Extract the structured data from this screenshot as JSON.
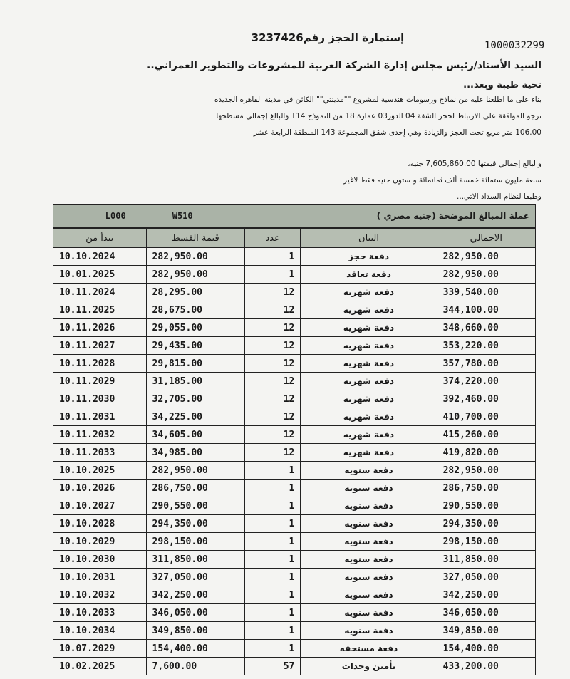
{
  "form_title": "إستمارة الحجز رقم3237426",
  "reference_number": "1000032299",
  "addressee": "السيد الأستاذ/رئيس مجلس إدارة الشركة العربية للمشروعات والتطوير العمراني..",
  "greeting": "تحية طيبة وبعد...",
  "body_lines": [
    "بناء على ما اطلعنا عليه من نماذج ورسومات هندسية لمشروع \"\"مدينتي\"\" الكائن في مدينة القاهرة الجديدة",
    "نرجو الموافقة على الارتباط لحجز الشقة 04 الدور03 عمارة  18  من النموذج T14  والبالغ إجمالي مسطحها",
    "106.00  متر مربع تحت العجز والزيادة وهي إحدى شقق المجموعة  143  المنطقة الرابعة عشر",
    "والبالغ إجمالي قيمتها   7,605,860.00  جنيه،",
    "سبعة مليون ستمائة خمسة ألف ثمانمائة و ستون   جنيه فقط لاغير",
    "وطبقا لنظام السداد الاتي..."
  ],
  "table": {
    "currency_caption": "عملة المبالغ الموضحة (جنيه مصري )",
    "code_1": "L000",
    "code_2": "W510",
    "headers": [
      "الاجمالي",
      "البيان",
      "عدد",
      "قيمة القسط",
      "يبدأ من"
    ],
    "rows": [
      [
        "282,950.00",
        "دفعة حجز",
        "1",
        "282,950.00",
        "10.10.2024"
      ],
      [
        "282,950.00",
        "دفعة تعاقد",
        "1",
        "282,950.00",
        "10.01.2025"
      ],
      [
        "339,540.00",
        "دفعة شهريه",
        "12",
        "28,295.00",
        "10.11.2024"
      ],
      [
        "344,100.00",
        "دفعة شهريه",
        "12",
        "28,675.00",
        "10.11.2025"
      ],
      [
        "348,660.00",
        "دفعة شهريه",
        "12",
        "29,055.00",
        "10.11.2026"
      ],
      [
        "353,220.00",
        "دفعة شهريه",
        "12",
        "29,435.00",
        "10.11.2027"
      ],
      [
        "357,780.00",
        "دفعة شهريه",
        "12",
        "29,815.00",
        "10.11.2028"
      ],
      [
        "374,220.00",
        "دفعة شهريه",
        "12",
        "31,185.00",
        "10.11.2029"
      ],
      [
        "392,460.00",
        "دفعة شهريه",
        "12",
        "32,705.00",
        "10.11.2030"
      ],
      [
        "410,700.00",
        "دفعة شهريه",
        "12",
        "34,225.00",
        "10.11.2031"
      ],
      [
        "415,260.00",
        "دفعة شهريه",
        "12",
        "34,605.00",
        "10.11.2032"
      ],
      [
        "419,820.00",
        "دفعة شهريه",
        "12",
        "34,985.00",
        "10.11.2033"
      ],
      [
        "282,950.00",
        "دفعة سنويه",
        "1",
        "282,950.00",
        "10.10.2025"
      ],
      [
        "286,750.00",
        "دفعة سنويه",
        "1",
        "286,750.00",
        "10.10.2026"
      ],
      [
        "290,550.00",
        "دفعة سنويه",
        "1",
        "290,550.00",
        "10.10.2027"
      ],
      [
        "294,350.00",
        "دفعة سنويه",
        "1",
        "294,350.00",
        "10.10.2028"
      ],
      [
        "298,150.00",
        "دفعة سنويه",
        "1",
        "298,150.00",
        "10.10.2029"
      ],
      [
        "311,850.00",
        "دفعة سنويه",
        "1",
        "311,850.00",
        "10.10.2030"
      ],
      [
        "327,050.00",
        "دفعة سنويه",
        "1",
        "327,050.00",
        "10.10.2031"
      ],
      [
        "342,250.00",
        "دفعة سنويه",
        "1",
        "342,250.00",
        "10.10.2032"
      ],
      [
        "346,050.00",
        "دفعة سنويه",
        "1",
        "346,050.00",
        "10.10.2033"
      ],
      [
        "349,850.00",
        "دفعة سنويه",
        "1",
        "349,850.00",
        "10.10.2034"
      ],
      [
        "154,400.00",
        "دفعة مستحقه",
        "1",
        "154,400.00",
        "10.07.2029"
      ],
      [
        "433,200.00",
        "تأمين وحدات",
        "57",
        "7,600.00",
        "10.02.2025"
      ]
    ]
  }
}
